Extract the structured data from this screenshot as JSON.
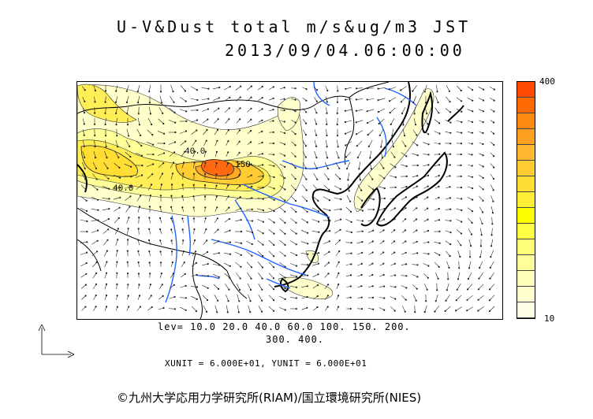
{
  "title": {
    "line1": "U-V&Dust total m/s&ug/m3 JST",
    "line2": "2013/09/04.06:00:00"
  },
  "colorbar": {
    "max_label": "400",
    "min_label": "10",
    "colors": [
      "#ff4a00",
      "#ff6a00",
      "#ff8a10",
      "#ffa020",
      "#ffb830",
      "#ffcc33",
      "#ffdd33",
      "#ffee33",
      "#ffff00",
      "#ffff44",
      "#ffff77",
      "#ffff99",
      "#ffffbb",
      "#ffffd0",
      "#ffffe6"
    ]
  },
  "contour_labels": {
    "lbl_40a": "40.0",
    "lbl_40b": "40.0",
    "lbl_150": "150"
  },
  "levels": {
    "line1": "lev= 10.0 20.0 40.0 60.0 100. 150. 200.",
    "line2": "300. 400."
  },
  "units": {
    "text": "XUNIT = 6.000E+01, YUNIT = 6.000E+01"
  },
  "copyright": {
    "text": "©九州大学応用力学研究所(RIAM)/国立環境研究所(NIES)"
  }
}
